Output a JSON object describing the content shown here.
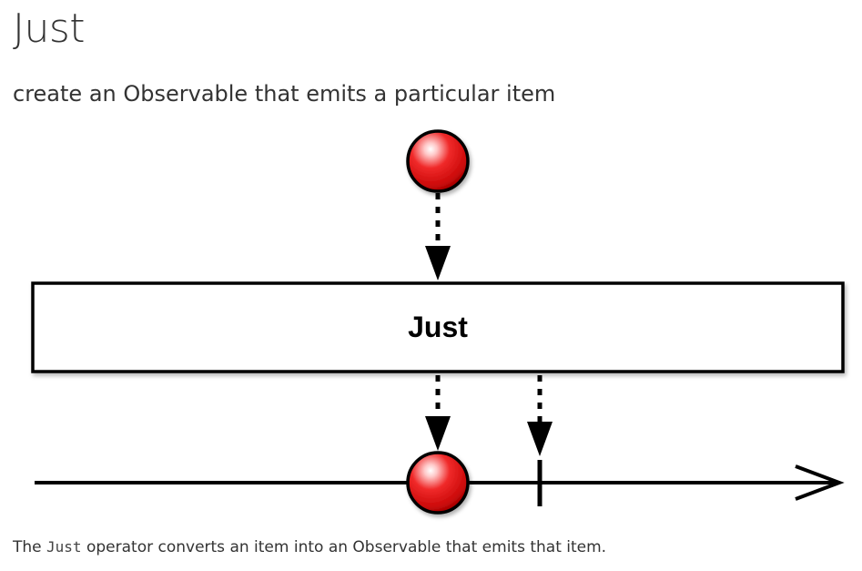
{
  "page": {
    "title": "Just",
    "subtitle": "create an Observable that emits a particular item"
  },
  "diagram": {
    "operator_label": "Just",
    "input_item_color": "#e81010",
    "output_item_color": "#e81010"
  },
  "description": {
    "prefix": "The ",
    "code": "Just",
    "suffix": " operator converts an item into an Observable that emits that item."
  }
}
